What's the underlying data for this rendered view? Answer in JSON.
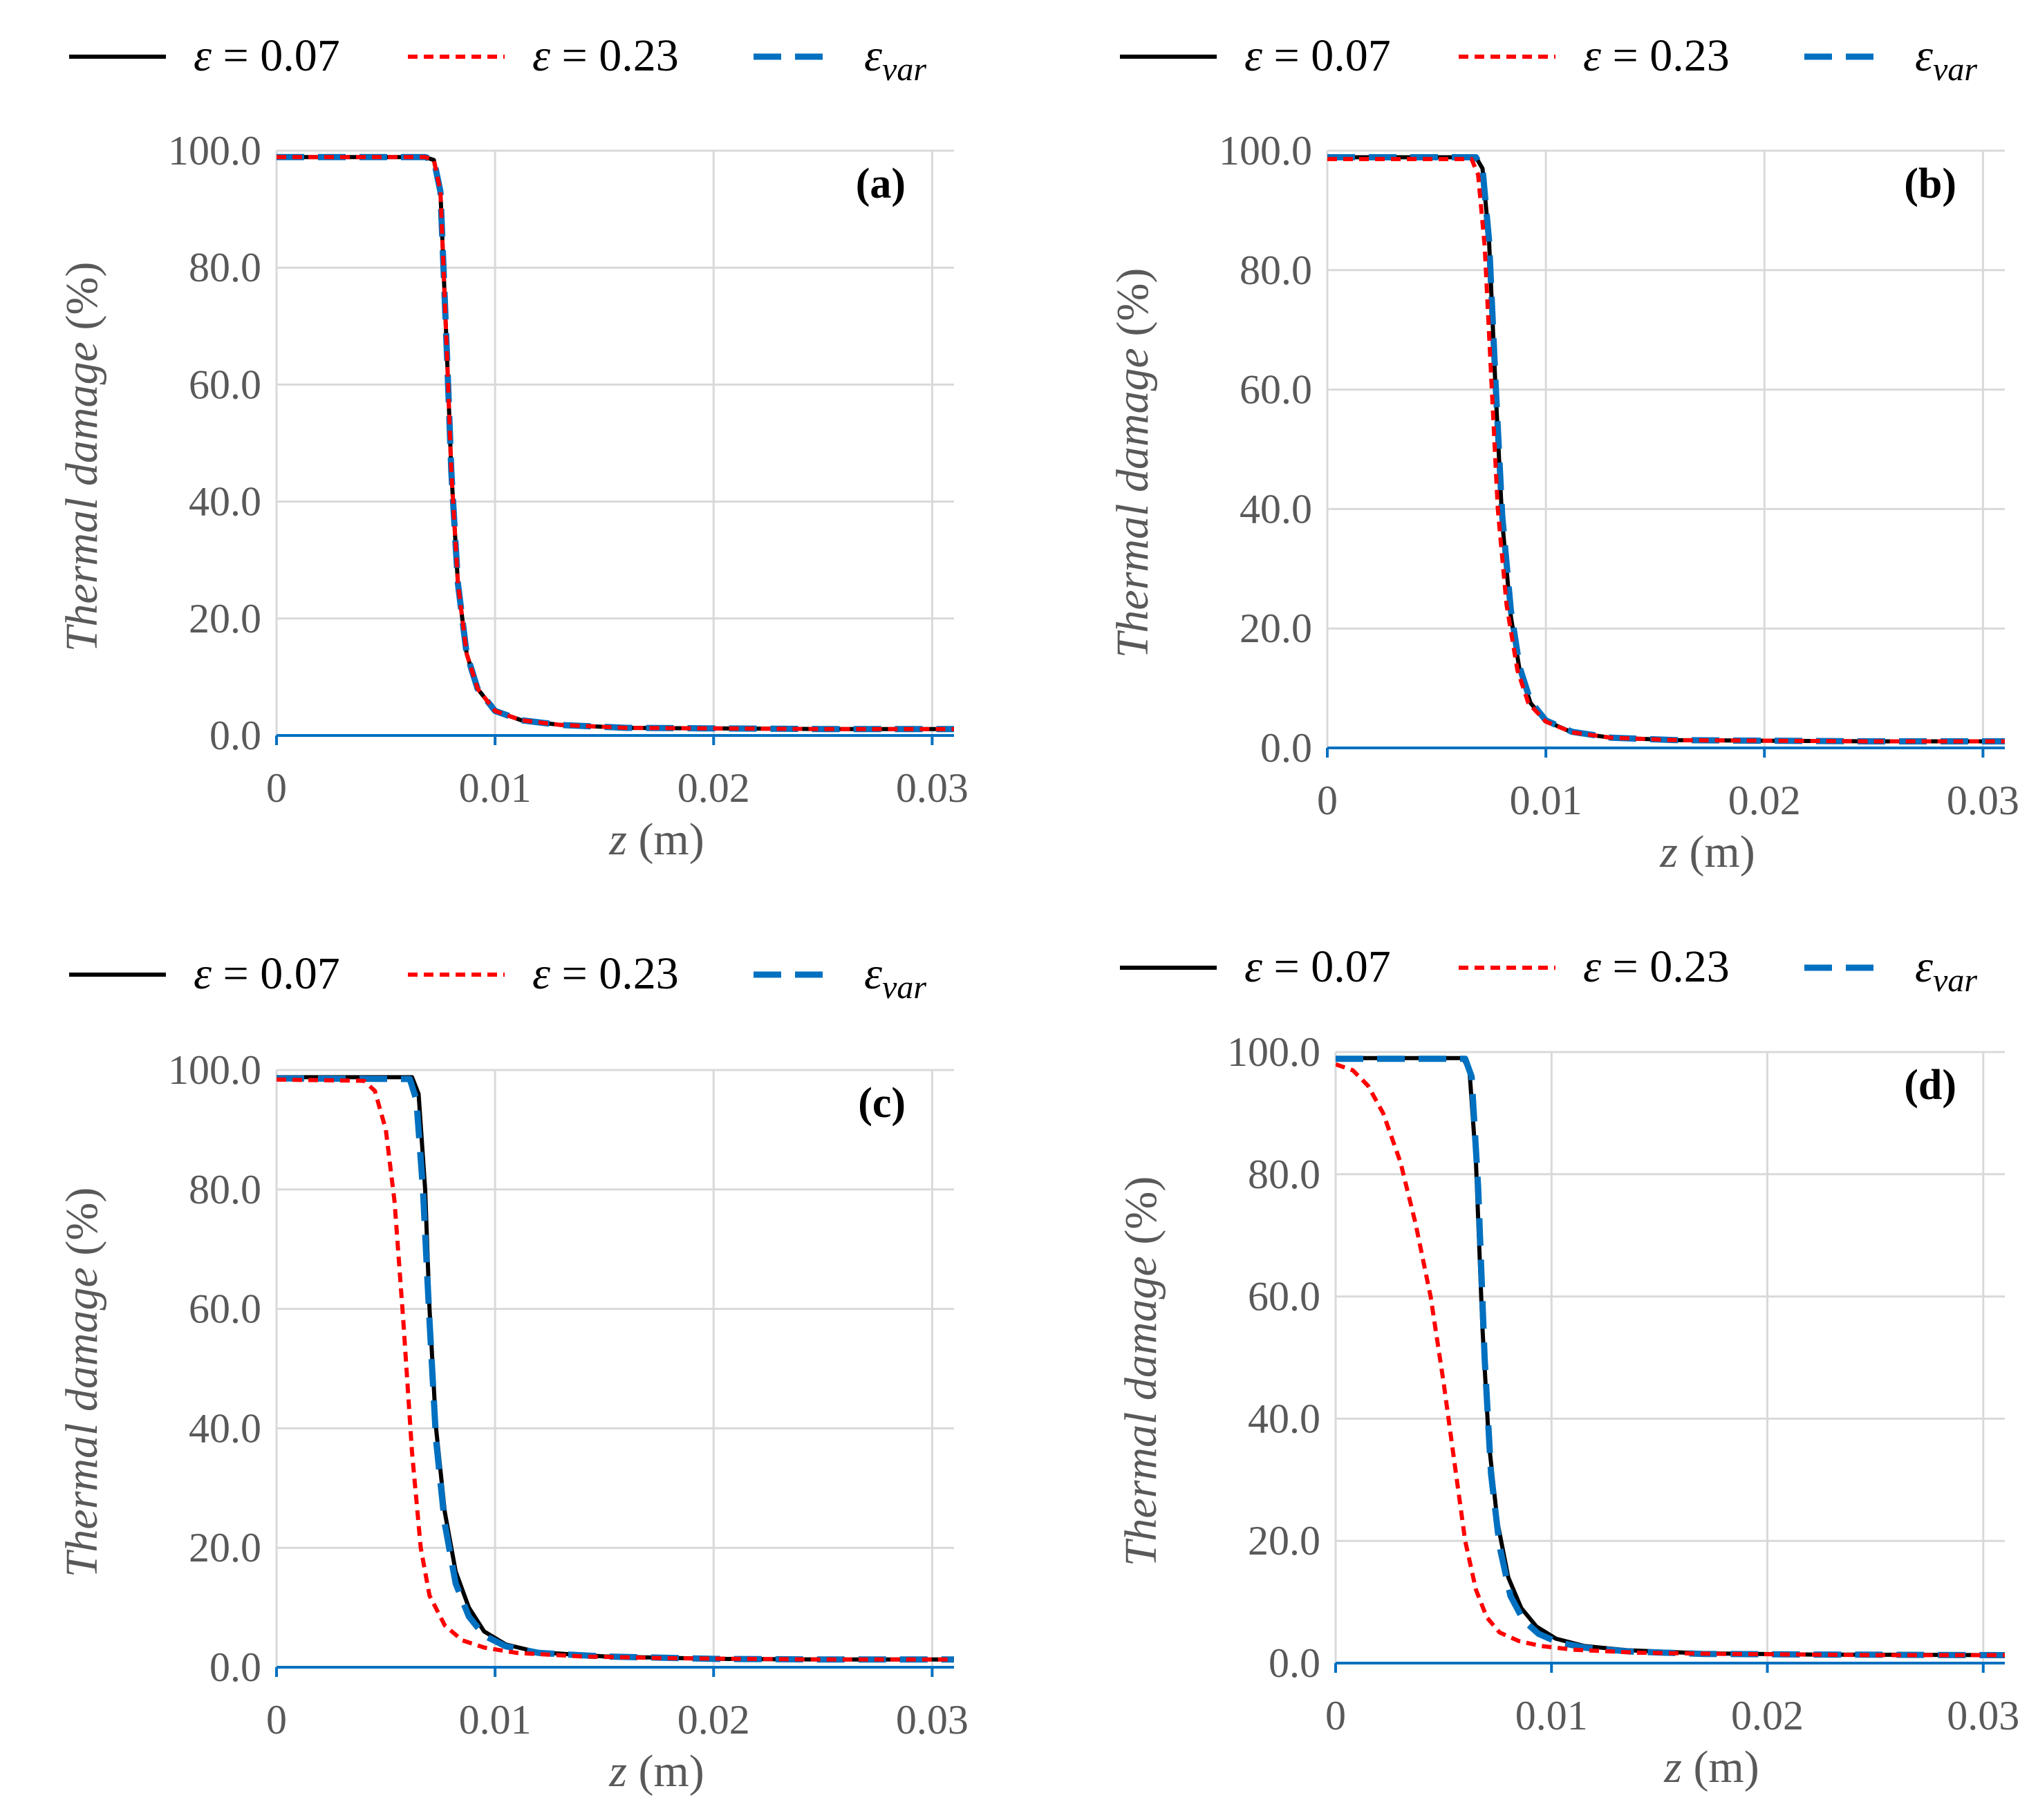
{
  "chart_data": [
    {
      "type": "line",
      "panel": "(a)",
      "xlabel_var": "z",
      "xlabel_unit": " (m)",
      "ylabel": "Thermal damage (%)",
      "xlim": [
        0,
        0.031
      ],
      "ylim": [
        0,
        100
      ],
      "xticks": [
        0,
        0.01,
        0.02,
        0.03
      ],
      "xtick_labels": [
        "0",
        "0.01",
        "0.02",
        "0.03"
      ],
      "yticks": [
        0,
        20,
        40,
        60,
        80,
        100
      ],
      "ytick_labels": [
        "0.0",
        "20.0",
        "40.0",
        "60.0",
        "80.0",
        "100.0"
      ],
      "legend": [
        {
          "sym": "ε",
          "sub": "",
          "label": " = 0.07"
        },
        {
          "sym": "ε",
          "sub": "",
          "label": " = 0.23"
        },
        {
          "sym": "ε",
          "sub": "var",
          "label": ""
        }
      ],
      "series": [
        {
          "name": "ε = 0.07",
          "color": "#000000",
          "style": "solid",
          "x": [
            0,
            0.0068,
            0.0072,
            0.0075,
            0.0078,
            0.008,
            0.0083,
            0.0087,
            0.0092,
            0.01,
            0.0112,
            0.013,
            0.016,
            0.02,
            0.025,
            0.031
          ],
          "y": [
            98.9,
            98.9,
            98.4,
            93,
            65,
            45,
            26,
            14,
            8,
            4.2,
            2.6,
            1.8,
            1.3,
            1.2,
            1.1,
            1.1
          ]
        },
        {
          "name": "ε = 0.23",
          "color": "#ff0000",
          "style": "dotted",
          "x": [
            0,
            0.0068,
            0.0072,
            0.0075,
            0.0078,
            0.008,
            0.0083,
            0.0087,
            0.0092,
            0.01,
            0.0112,
            0.013,
            0.016,
            0.02,
            0.025,
            0.031
          ],
          "y": [
            98.9,
            98.9,
            98.4,
            93,
            65,
            45,
            26,
            14,
            8,
            4.2,
            2.6,
            1.8,
            1.3,
            1.2,
            1.1,
            1.1
          ]
        },
        {
          "name": "ε var",
          "color": "#0070c0",
          "style": "dashed",
          "x": [
            0,
            0.0068,
            0.0072,
            0.0075,
            0.0078,
            0.008,
            0.0083,
            0.0087,
            0.0092,
            0.01,
            0.0112,
            0.013,
            0.016,
            0.02,
            0.025,
            0.031
          ],
          "y": [
            98.9,
            98.9,
            98.4,
            93,
            65,
            45,
            26,
            14,
            8,
            4.2,
            2.6,
            1.8,
            1.3,
            1.2,
            1.1,
            1.1
          ]
        }
      ]
    },
    {
      "type": "line",
      "panel": "(b)",
      "xlabel_var": "z",
      "xlabel_unit": " (m)",
      "ylabel": "Thermal damage (%)",
      "xlim": [
        0,
        0.031
      ],
      "ylim": [
        0,
        100
      ],
      "xticks": [
        0,
        0.01,
        0.02,
        0.03
      ],
      "xtick_labels": [
        "0",
        "0.01",
        "0.02",
        "0.03"
      ],
      "yticks": [
        0,
        20,
        40,
        60,
        80,
        100
      ],
      "ytick_labels": [
        "0.0",
        "20.0",
        "40.0",
        "60.0",
        "80.0",
        "100.0"
      ],
      "legend": [
        {
          "sym": "ε",
          "sub": "",
          "label": " = 0.07"
        },
        {
          "sym": "ε",
          "sub": "",
          "label": " = 0.23"
        },
        {
          "sym": "ε",
          "sub": "var",
          "label": ""
        }
      ],
      "series": [
        {
          "name": "ε = 0.07",
          "color": "#000000",
          "style": "solid",
          "x": [
            0,
            0.0068,
            0.0071,
            0.0074,
            0.0077,
            0.008,
            0.0084,
            0.0088,
            0.0093,
            0.01,
            0.0112,
            0.013,
            0.016,
            0.02,
            0.025,
            0.031
          ],
          "y": [
            98.9,
            98.9,
            97,
            85,
            60,
            38,
            22,
            13,
            7.5,
            4.5,
            2.6,
            1.7,
            1.3,
            1.2,
            1.1,
            1.1
          ]
        },
        {
          "name": "ε = 0.23",
          "color": "#ff0000",
          "style": "dotted",
          "x": [
            0,
            0.0066,
            0.0069,
            0.0072,
            0.0075,
            0.0078,
            0.0082,
            0.0087,
            0.0092,
            0.01,
            0.0112,
            0.013,
            0.016,
            0.02,
            0.025,
            0.031
          ],
          "y": [
            98.6,
            98.6,
            96,
            84,
            62,
            40,
            24,
            13,
            7.5,
            4.4,
            2.6,
            1.7,
            1.3,
            1.2,
            1.1,
            1.1
          ]
        },
        {
          "name": "ε var",
          "color": "#0070c0",
          "style": "dashed",
          "x": [
            0,
            0.0068,
            0.0071,
            0.0074,
            0.0077,
            0.008,
            0.0084,
            0.0088,
            0.0093,
            0.01,
            0.0112,
            0.013,
            0.016,
            0.02,
            0.025,
            0.031
          ],
          "y": [
            98.9,
            98.9,
            97,
            85,
            61,
            39,
            23,
            13.5,
            7.8,
            4.6,
            2.7,
            1.7,
            1.3,
            1.2,
            1.1,
            1.1
          ]
        }
      ]
    },
    {
      "type": "line",
      "panel": "(c)",
      "xlabel_var": "z",
      "xlabel_unit": " (m)",
      "ylabel": "Thermal damage (%)",
      "xlim": [
        0,
        0.031
      ],
      "ylim": [
        0,
        100
      ],
      "xticks": [
        0,
        0.01,
        0.02,
        0.03
      ],
      "xtick_labels": [
        "0",
        "0.01",
        "0.02",
        "0.03"
      ],
      "yticks": [
        0,
        20,
        40,
        60,
        80,
        100
      ],
      "ytick_labels": [
        "0.0",
        "20.0",
        "40.0",
        "60.0",
        "80.0",
        "100.0"
      ],
      "legend": [
        {
          "sym": "ε",
          "sub": "",
          "label": " = 0.07"
        },
        {
          "sym": "ε",
          "sub": "",
          "label": " = 0.23"
        },
        {
          "sym": "ε",
          "sub": "var",
          "label": ""
        }
      ],
      "series": [
        {
          "name": "ε = 0.07",
          "color": "#000000",
          "style": "solid",
          "x": [
            0,
            0.0062,
            0.0065,
            0.0068,
            0.007,
            0.0073,
            0.0077,
            0.0082,
            0.0088,
            0.0095,
            0.0105,
            0.012,
            0.015,
            0.02,
            0.025,
            0.031
          ],
          "y": [
            98.8,
            98.8,
            96,
            80,
            60,
            40,
            26,
            16,
            10,
            6,
            3.8,
            2.5,
            1.8,
            1.4,
            1.3,
            1.3
          ]
        },
        {
          "name": "ε = 0.23",
          "color": "#ff0000",
          "style": "dotted",
          "x": [
            0,
            0.004,
            0.0045,
            0.005,
            0.0054,
            0.0058,
            0.0062,
            0.0066,
            0.007,
            0.0077,
            0.0085,
            0.0095,
            0.011,
            0.014,
            0.018,
            0.025,
            0.031
          ],
          "y": [
            98.4,
            98.2,
            96.5,
            90,
            78,
            58,
            36,
            20,
            12,
            7,
            4.5,
            3.3,
            2.4,
            1.8,
            1.5,
            1.3,
            1.3
          ]
        },
        {
          "name": "ε var",
          "color": "#0070c0",
          "style": "dashed",
          "x": [
            0,
            0.0061,
            0.0064,
            0.0067,
            0.007,
            0.0073,
            0.0077,
            0.0082,
            0.0088,
            0.0095,
            0.0105,
            0.012,
            0.015,
            0.02,
            0.025,
            0.031
          ],
          "y": [
            98.6,
            98.5,
            95,
            80,
            58,
            38,
            24,
            14,
            8.5,
            5.3,
            3.5,
            2.4,
            1.8,
            1.4,
            1.3,
            1.3
          ]
        }
      ]
    },
    {
      "type": "line",
      "panel": "(d)",
      "xlabel_var": "z",
      "xlabel_unit": " (m)",
      "ylabel": "Thermal damage (%)",
      "xlim": [
        0,
        0.031
      ],
      "ylim": [
        0,
        100
      ],
      "xticks": [
        0,
        0.01,
        0.02,
        0.03
      ],
      "xtick_labels": [
        "0",
        "0.01",
        "0.02",
        "0.03"
      ],
      "yticks": [
        0,
        20,
        40,
        60,
        80,
        100
      ],
      "ytick_labels": [
        "0.0",
        "20.0",
        "40.0",
        "60.0",
        "80.0",
        "100.0"
      ],
      "legend": [
        {
          "sym": "ε",
          "sub": "",
          "label": " = 0.07"
        },
        {
          "sym": "ε",
          "sub": "",
          "label": " = 0.23"
        },
        {
          "sym": "ε",
          "sub": "var",
          "label": ""
        }
      ],
      "series": [
        {
          "name": "ε = 0.07",
          "color": "#000000",
          "style": "solid",
          "x": [
            0,
            0.0059,
            0.0062,
            0.0065,
            0.0068,
            0.0071,
            0.0075,
            0.008,
            0.0086,
            0.0093,
            0.0102,
            0.0115,
            0.0135,
            0.017,
            0.022,
            0.031
          ],
          "y": [
            99.0,
            99.0,
            97,
            82,
            55,
            36,
            23,
            14,
            9,
            6,
            4,
            2.8,
            2.1,
            1.6,
            1.4,
            1.3
          ]
        },
        {
          "name": "ε = 0.23",
          "color": "#ff0000",
          "style": "dotted",
          "x": [
            0,
            0.0008,
            0.0015,
            0.0022,
            0.003,
            0.0037,
            0.0044,
            0.005,
            0.0055,
            0.006,
            0.0065,
            0.007,
            0.0076,
            0.0085,
            0.0095,
            0.011,
            0.014,
            0.018,
            0.025,
            0.031
          ],
          "y": [
            98,
            97,
            94.5,
            90,
            82,
            72,
            60,
            46,
            33,
            20,
            12,
            7.5,
            5,
            3.6,
            2.8,
            2.2,
            1.7,
            1.5,
            1.3,
            1.3
          ]
        },
        {
          "name": "ε var",
          "color": "#0070c0",
          "style": "dashed",
          "x": [
            0,
            0.006,
            0.0063,
            0.0066,
            0.0069,
            0.0072,
            0.0076,
            0.0081,
            0.0087,
            0.0094,
            0.0103,
            0.0116,
            0.0136,
            0.017,
            0.022,
            0.031
          ],
          "y": [
            98.9,
            98.9,
            96,
            78,
            50,
            31,
            19,
            11,
            7,
            4.8,
            3.4,
            2.5,
            1.9,
            1.5,
            1.4,
            1.3
          ]
        }
      ]
    }
  ]
}
